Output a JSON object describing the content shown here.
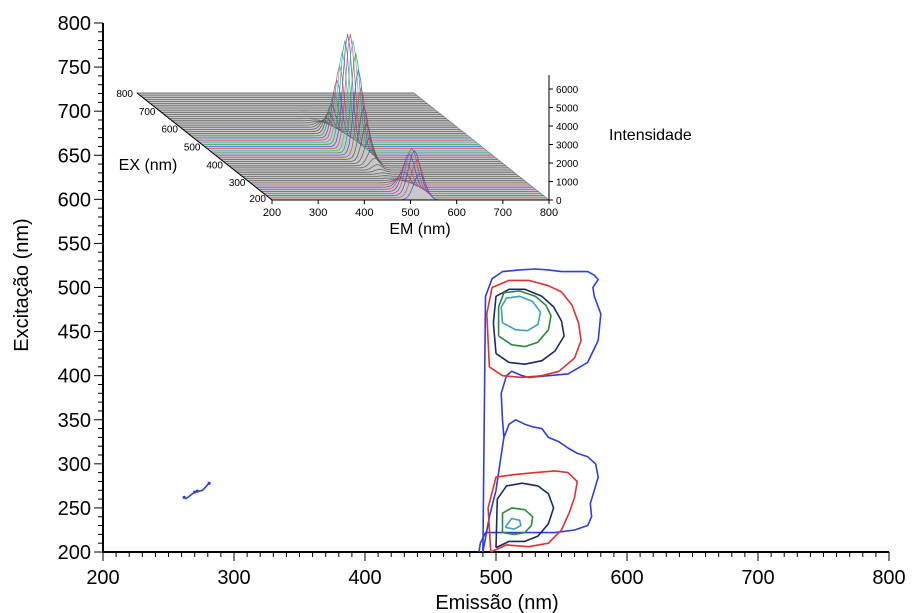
{
  "chart_data": [
    {
      "type": "contour",
      "xlabel": "Emissão (nm)",
      "ylabel": "Excitação (nm)",
      "xlim": [
        200,
        800
      ],
      "ylim": [
        200,
        800
      ],
      "xticks": [
        "200",
        "300",
        "400",
        "500",
        "600",
        "700",
        "800"
      ],
      "yticks": [
        "200",
        "250",
        "300",
        "350",
        "400",
        "450",
        "500",
        "550",
        "600",
        "650",
        "700",
        "750",
        "800"
      ],
      "grid": false,
      "colors": [
        "#2f3fd6",
        "#e03030",
        "#1a2a6a",
        "#2a8a3a",
        "#3aa0c0"
      ],
      "series": [
        {
          "color": "#2f3fd6",
          "x": [
            490,
            495,
            500,
            503,
            506,
            505,
            504,
            508,
            512,
            520,
            525,
            540,
            555,
            570,
            578,
            580,
            575,
            574,
            578,
            575,
            570,
            562,
            550,
            540,
            530,
            518,
            505,
            497,
            492,
            490
          ],
          "y": [
            200,
            240,
            270,
            300,
            330,
            350,
            380,
            400,
            405,
            400,
            398,
            400,
            402,
            415,
            440,
            470,
            490,
            500,
            509,
            514,
            518,
            518,
            518,
            520,
            521,
            520,
            518,
            510,
            490,
            200
          ]
        },
        {
          "color": "#2f3fd6",
          "x": [
            506,
            510,
            515,
            522,
            528,
            535,
            540,
            548,
            555,
            562,
            570,
            576,
            578,
            575,
            572,
            573,
            570,
            560,
            545,
            530,
            515,
            500,
            492,
            488,
            487
          ],
          "y": [
            330,
            345,
            350,
            345,
            342,
            340,
            330,
            325,
            318,
            312,
            308,
            300,
            285,
            270,
            255,
            240,
            230,
            225,
            222,
            222,
            222,
            222,
            222,
            210,
            200
          ]
        },
        {
          "color": "#e03030",
          "x": [
            495,
            505,
            520,
            535,
            548,
            560,
            565,
            563,
            558,
            550,
            540,
            525,
            510,
            497,
            493,
            495
          ],
          "y": [
            410,
            400,
            398,
            400,
            405,
            420,
            440,
            460,
            480,
            495,
            502,
            508,
            508,
            500,
            470,
            410
          ]
        },
        {
          "color": "#1a2a6a",
          "x": [
            500,
            510,
            522,
            535,
            545,
            552,
            550,
            544,
            535,
            522,
            510,
            500,
            498,
            500
          ],
          "y": [
            425,
            415,
            413,
            417,
            428,
            445,
            462,
            478,
            490,
            498,
            498,
            490,
            460,
            425
          ]
        },
        {
          "color": "#2a8a3a",
          "x": [
            502,
            512,
            522,
            532,
            540,
            542,
            538,
            530,
            518,
            506,
            502,
            502
          ],
          "y": [
            445,
            435,
            433,
            438,
            452,
            468,
            480,
            490,
            496,
            494,
            478,
            445
          ]
        },
        {
          "color": "#3aa0c0",
          "x": [
            505,
            515,
            524,
            532,
            534,
            528,
            518,
            508,
            504,
            505
          ],
          "y": [
            460,
            452,
            451,
            458,
            472,
            484,
            490,
            488,
            478,
            460
          ]
        },
        {
          "color": "#e03030",
          "x": [
            496,
            508,
            525,
            540,
            550,
            556,
            560,
            562,
            555,
            545,
            530,
            515,
            500,
            494,
            496
          ],
          "y": [
            200,
            208,
            206,
            210,
            225,
            245,
            262,
            280,
            290,
            292,
            290,
            288,
            285,
            250,
            200
          ]
        },
        {
          "color": "#1a2a6a",
          "x": [
            500,
            510,
            522,
            532,
            540,
            544,
            540,
            532,
            520,
            508,
            501,
            500
          ],
          "y": [
            205,
            212,
            212,
            218,
            232,
            250,
            266,
            275,
            278,
            275,
            260,
            205
          ]
        },
        {
          "color": "#2a8a3a",
          "x": [
            505,
            514,
            522,
            527,
            528,
            522,
            512,
            505,
            505
          ],
          "y": [
            222,
            220,
            222,
            230,
            240,
            248,
            250,
            244,
            222
          ]
        },
        {
          "color": "#3aa0c0",
          "x": [
            507,
            514,
            519,
            518,
            512,
            507
          ],
          "y": [
            228,
            226,
            230,
            236,
            238,
            228
          ]
        },
        {
          "color": "#2f3fd6",
          "x": [
            263,
            270,
            276,
            281
          ],
          "y": [
            260,
            268,
            270,
            278
          ]
        }
      ]
    },
    {
      "type": "surface",
      "xlabel": "EM (nm)",
      "ylabel": "EX (nm)",
      "zlabel": "Intensidade",
      "xticks": [
        "200",
        "300",
        "400",
        "500",
        "600",
        "700",
        "800"
      ],
      "yticks": [
        "200",
        "300",
        "400",
        "500",
        "600",
        "700",
        "800"
      ],
      "zticks": [
        "0",
        "1000",
        "2000",
        "3000",
        "4000",
        "5000",
        "6000"
      ],
      "peaks": [
        {
          "em": 510,
          "ex": 490,
          "intensity": 6200
        },
        {
          "em": 520,
          "ex": 230,
          "intensity": 2500
        }
      ]
    }
  ]
}
